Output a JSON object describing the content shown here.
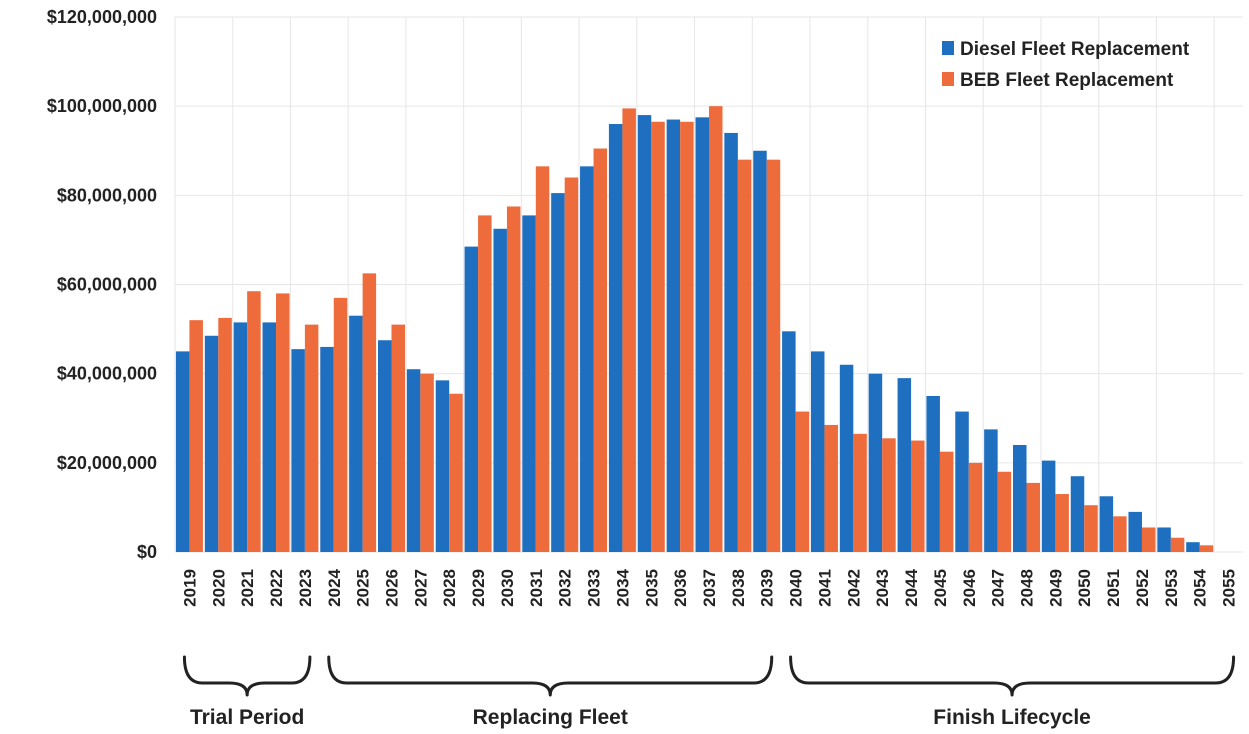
{
  "chart_data": {
    "type": "bar",
    "categories": [
      "2019",
      "2020",
      "2021",
      "2022",
      "2023",
      "2024",
      "2025",
      "2026",
      "2027",
      "2028",
      "2029",
      "2030",
      "2031",
      "2032",
      "2033",
      "2034",
      "2035",
      "2036",
      "2037",
      "2038",
      "2039",
      "2040",
      "2041",
      "2042",
      "2043",
      "2044",
      "2045",
      "2046",
      "2047",
      "2048",
      "2049",
      "2050",
      "2051",
      "2052",
      "2053",
      "2054",
      "2055"
    ],
    "series": [
      {
        "name": "Diesel Fleet Replacement",
        "color": "#1f6fc0",
        "values": [
          45000000,
          48500000,
          51500000,
          51500000,
          45500000,
          46000000,
          53000000,
          47500000,
          41000000,
          38500000,
          68500000,
          72500000,
          75500000,
          80500000,
          86500000,
          96000000,
          98000000,
          97000000,
          97500000,
          94000000,
          90000000,
          49500000,
          45000000,
          42000000,
          40000000,
          39000000,
          35000000,
          31500000,
          27500000,
          24000000,
          20500000,
          17000000,
          12500000,
          9000000,
          5500000,
          2200000,
          0
        ]
      },
      {
        "name": "BEB Fleet Replacement",
        "color": "#ee6c3c",
        "values": [
          52000000,
          52500000,
          58500000,
          58000000,
          51000000,
          57000000,
          62500000,
          51000000,
          40000000,
          35500000,
          75500000,
          77500000,
          86500000,
          84000000,
          90500000,
          99500000,
          96500000,
          96500000,
          100000000,
          88000000,
          88000000,
          31500000,
          28500000,
          26500000,
          25500000,
          25000000,
          22500000,
          20000000,
          18000000,
          15500000,
          13000000,
          10500000,
          8000000,
          5500000,
          3200000,
          1500000,
          0
        ]
      }
    ],
    "y_tick_labels": [
      "$0",
      "$20,000,000",
      "$40,000,000",
      "$60,000,000",
      "$80,000,000",
      "$100,000,000",
      "$120,000,000"
    ],
    "y_ticks": [
      0,
      20000000,
      40000000,
      60000000,
      80000000,
      100000000,
      120000000
    ],
    "ylim": [
      0,
      120000000
    ],
    "title": "",
    "xlabel": "",
    "ylabel": "",
    "legend_position": "top-right",
    "grid": true,
    "phases": [
      {
        "label": "Trial Period",
        "start": "2019",
        "end": "2023"
      },
      {
        "label": "Replacing Fleet",
        "start": "2024",
        "end": "2039"
      },
      {
        "label": "Finish Lifecycle",
        "start": "2040",
        "end": "2055"
      }
    ]
  }
}
